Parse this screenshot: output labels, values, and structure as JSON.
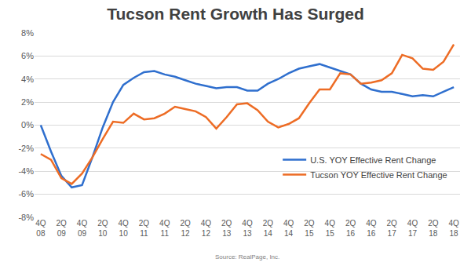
{
  "chart_data": {
    "type": "line",
    "title": "Tucson Rent Growth Has Surged",
    "source": "Source: RealPage, Inc.",
    "categories": [
      "4Q\n08",
      null,
      "2Q\n09",
      null,
      "4Q\n09",
      null,
      "2Q\n10",
      null,
      "4Q\n10",
      null,
      "2Q\n11",
      null,
      "4Q\n11",
      null,
      "2Q\n12",
      null,
      "4Q\n12",
      null,
      "2Q\n13",
      null,
      "4Q\n13",
      null,
      "2Q\n14",
      null,
      "4Q\n14",
      null,
      "2Q\n15",
      null,
      "4Q\n15",
      null,
      "2Q\n16",
      null,
      "4Q\n16",
      null,
      "2Q\n17",
      null,
      "4Q\n17",
      null,
      "2Q\n18",
      null,
      "4Q\n18"
    ],
    "series": [
      {
        "name": "U.S. YOY Effective Rent Change",
        "color": "#2f6fce",
        "values": [
          0,
          -2.3,
          -4.4,
          -5.4,
          -5.2,
          -2.8,
          -0.2,
          2.0,
          3.5,
          4.1,
          4.6,
          4.7,
          4.4,
          4.2,
          3.9,
          3.6,
          3.4,
          3.2,
          3.3,
          3.3,
          3.0,
          3.0,
          3.6,
          4.0,
          4.5,
          4.9,
          5.1,
          5.3,
          5.0,
          4.7,
          4.4,
          3.6,
          3.1,
          2.9,
          2.9,
          2.7,
          2.5,
          2.6,
          2.5,
          2.9,
          3.3
        ]
      },
      {
        "name": "Tucson YOY Effective Rent Change",
        "color": "#ed6c25",
        "values": [
          -2.5,
          -3.0,
          -4.6,
          -5.1,
          -4.2,
          -2.8,
          -1.2,
          0.3,
          0.2,
          1.0,
          0.5,
          0.6,
          1.0,
          1.6,
          1.4,
          1.2,
          0.7,
          -0.3,
          0.7,
          1.8,
          1.9,
          1.3,
          0.3,
          -0.2,
          0.1,
          0.6,
          1.9,
          3.1,
          3.1,
          4.5,
          4.4,
          3.6,
          3.7,
          3.9,
          4.5,
          6.1,
          5.8,
          4.9,
          4.8,
          5.5,
          7.0
        ]
      }
    ],
    "ylim": [
      -8,
      8
    ],
    "yticks": [
      {
        "value": -8,
        "label": "-8%"
      },
      {
        "value": -6,
        "label": "-6%"
      },
      {
        "value": -4,
        "label": "-4%"
      },
      {
        "value": -2,
        "label": "-2%"
      },
      {
        "value": 0,
        "label": "0%"
      },
      {
        "value": 2,
        "label": "2%"
      },
      {
        "value": 4,
        "label": "4%"
      },
      {
        "value": 6,
        "label": "6%"
      },
      {
        "value": 8,
        "label": "8%"
      }
    ],
    "grid": true,
    "legend": "lower right"
  }
}
